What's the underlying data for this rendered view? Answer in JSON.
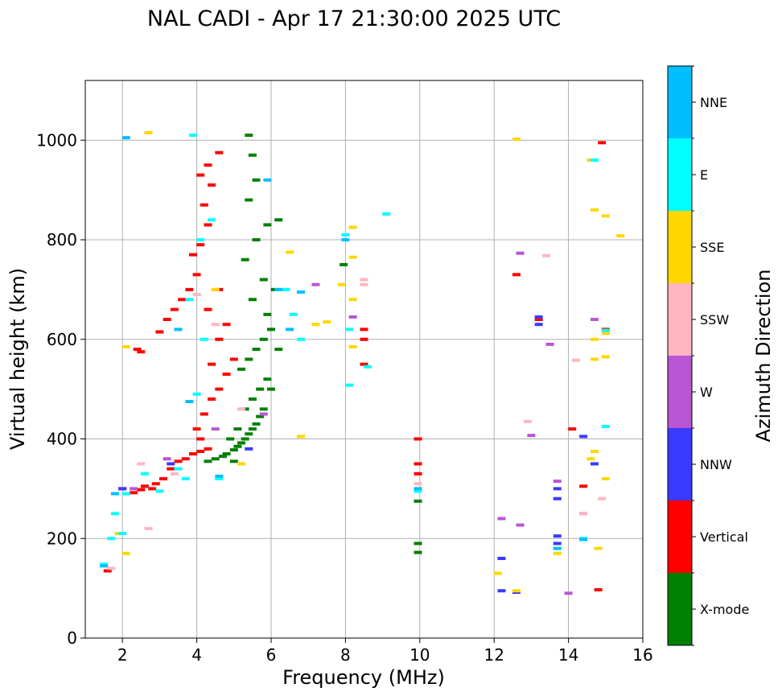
{
  "chart_data": {
    "type": "scatter",
    "title": "NAL CADI - Apr 17 21:30:00 2025 UTC",
    "xlabel": "Frequency (MHz)",
    "ylabel": "Virtual height (km)",
    "xlim": [
      1,
      16
    ],
    "ylim": [
      0,
      1120
    ],
    "xticks": [
      2,
      4,
      6,
      8,
      10,
      12,
      14,
      16
    ],
    "yticks": [
      0,
      200,
      400,
      600,
      800,
      1000
    ],
    "grid": true,
    "colorbar": {
      "label": "Azimuth Direction",
      "categories": [
        {
          "name": "X-mode",
          "color": "#008000"
        },
        {
          "name": "Vertical",
          "color": "#ff0000"
        },
        {
          "name": "NNW",
          "color": "#3a3aff"
        },
        {
          "name": "W",
          "color": "#ba55d3"
        },
        {
          "name": "SSW",
          "color": "#ffb6c1"
        },
        {
          "name": "SSE",
          "color": "#ffd700"
        },
        {
          "name": "E",
          "color": "#00ffff"
        },
        {
          "name": "NNE",
          "color": "#00bfff"
        }
      ]
    },
    "series": [
      {
        "name": "X-mode",
        "points": [
          [
            4.3,
            355
          ],
          [
            4.5,
            360
          ],
          [
            4.7,
            365
          ],
          [
            4.8,
            370
          ],
          [
            5.0,
            378
          ],
          [
            5.1,
            385
          ],
          [
            5.2,
            392
          ],
          [
            5.3,
            400
          ],
          [
            5.4,
            410
          ],
          [
            5.5,
            420
          ],
          [
            5.6,
            430
          ],
          [
            5.7,
            445
          ],
          [
            5.3,
            460
          ],
          [
            5.5,
            480
          ],
          [
            5.7,
            500
          ],
          [
            5.9,
            520
          ],
          [
            5.2,
            540
          ],
          [
            5.4,
            560
          ],
          [
            5.6,
            580
          ],
          [
            5.8,
            600
          ],
          [
            6.0,
            620
          ],
          [
            6.2,
            580
          ],
          [
            5.9,
            650
          ],
          [
            5.5,
            680
          ],
          [
            5.8,
            720
          ],
          [
            6.1,
            700
          ],
          [
            5.3,
            760
          ],
          [
            5.6,
            800
          ],
          [
            5.9,
            830
          ],
          [
            5.4,
            880
          ],
          [
            5.6,
            920
          ],
          [
            5.5,
            970
          ],
          [
            5.4,
            1010
          ],
          [
            6.2,
            840
          ],
          [
            4.9,
            400
          ],
          [
            5.1,
            420
          ],
          [
            5.8,
            460
          ],
          [
            6.0,
            500
          ],
          [
            5.0,
            355
          ],
          [
            9.95,
            275
          ],
          [
            9.95,
            190
          ],
          [
            9.95,
            172
          ],
          [
            7.95,
            750
          ]
        ]
      },
      {
        "name": "Vertical",
        "points": [
          [
            1.6,
            135
          ],
          [
            2.0,
            300
          ],
          [
            2.3,
            292
          ],
          [
            2.5,
            298
          ],
          [
            2.6,
            305
          ],
          [
            2.8,
            300
          ],
          [
            2.9,
            310
          ],
          [
            3.1,
            320
          ],
          [
            3.3,
            340
          ],
          [
            3.5,
            355
          ],
          [
            3.7,
            360
          ],
          [
            3.9,
            370
          ],
          [
            4.1,
            375
          ],
          [
            4.3,
            380
          ],
          [
            4.1,
            400
          ],
          [
            4.0,
            420
          ],
          [
            4.2,
            450
          ],
          [
            4.4,
            480
          ],
          [
            4.6,
            500
          ],
          [
            4.8,
            530
          ],
          [
            5.0,
            560
          ],
          [
            4.4,
            550
          ],
          [
            4.6,
            600
          ],
          [
            4.8,
            630
          ],
          [
            4.3,
            660
          ],
          [
            4.6,
            700
          ],
          [
            2.4,
            580
          ],
          [
            2.5,
            575
          ],
          [
            3.0,
            615
          ],
          [
            3.2,
            640
          ],
          [
            3.4,
            660
          ],
          [
            3.6,
            680
          ],
          [
            3.8,
            700
          ],
          [
            4.0,
            730
          ],
          [
            3.9,
            770
          ],
          [
            4.1,
            790
          ],
          [
            4.3,
            830
          ],
          [
            4.2,
            870
          ],
          [
            4.4,
            910
          ],
          [
            4.1,
            930
          ],
          [
            4.3,
            950
          ],
          [
            4.6,
            975
          ],
          [
            8.5,
            620
          ],
          [
            8.5,
            600
          ],
          [
            8.5,
            550
          ],
          [
            9.95,
            400
          ],
          [
            9.95,
            350
          ],
          [
            9.95,
            330
          ],
          [
            12.6,
            730
          ],
          [
            13.2,
            640
          ],
          [
            14.1,
            420
          ],
          [
            14.4,
            305
          ],
          [
            14.8,
            97
          ],
          [
            14.9,
            995
          ],
          [
            15.0,
            620
          ]
        ]
      },
      {
        "name": "NNW",
        "points": [
          [
            2.0,
            300
          ],
          [
            3.3,
            350
          ],
          [
            5.4,
            380
          ],
          [
            13.2,
            645
          ],
          [
            13.2,
            630
          ],
          [
            13.7,
            300
          ],
          [
            13.7,
            280
          ],
          [
            13.7,
            205
          ],
          [
            13.7,
            190
          ],
          [
            12.2,
            95
          ],
          [
            12.6,
            92
          ],
          [
            12.2,
            160
          ],
          [
            14.7,
            350
          ],
          [
            14.4,
            405
          ]
        ]
      },
      {
        "name": "W",
        "points": [
          [
            2.3,
            300
          ],
          [
            3.2,
            360
          ],
          [
            4.5,
            420
          ],
          [
            5.8,
            450
          ],
          [
            7.2,
            710
          ],
          [
            8.2,
            645
          ],
          [
            12.7,
            773
          ],
          [
            13.0,
            407
          ],
          [
            13.5,
            590
          ],
          [
            13.7,
            315
          ],
          [
            12.7,
            227
          ],
          [
            14.0,
            90
          ],
          [
            14.4,
            250
          ],
          [
            14.7,
            640
          ],
          [
            12.2,
            240
          ]
        ]
      },
      {
        "name": "SSW",
        "points": [
          [
            1.7,
            140
          ],
          [
            2.5,
            350
          ],
          [
            2.7,
            220
          ],
          [
            3.4,
            330
          ],
          [
            4.0,
            690
          ],
          [
            4.5,
            630
          ],
          [
            5.2,
            460
          ],
          [
            8.5,
            720
          ],
          [
            8.5,
            710
          ],
          [
            12.9,
            435
          ],
          [
            13.4,
            768
          ],
          [
            14.2,
            558
          ],
          [
            14.4,
            250
          ],
          [
            14.9,
            280
          ],
          [
            9.95,
            310
          ]
        ]
      },
      {
        "name": "SSE",
        "points": [
          [
            1.9,
            210
          ],
          [
            2.1,
            170
          ],
          [
            2.1,
            585
          ],
          [
            2.7,
            1015
          ],
          [
            4.5,
            700
          ],
          [
            5.2,
            350
          ],
          [
            6.5,
            775
          ],
          [
            6.8,
            405
          ],
          [
            7.2,
            630
          ],
          [
            7.5,
            635
          ],
          [
            7.9,
            710
          ],
          [
            8.2,
            825
          ],
          [
            8.2,
            765
          ],
          [
            8.2,
            680
          ],
          [
            8.2,
            585
          ],
          [
            12.6,
            1002
          ],
          [
            12.6,
            95
          ],
          [
            12.1,
            130
          ],
          [
            13.7,
            170
          ],
          [
            14.6,
            960
          ],
          [
            14.7,
            860
          ],
          [
            15.0,
            848
          ],
          [
            15.4,
            808
          ],
          [
            15.0,
            612
          ],
          [
            15.0,
            565
          ],
          [
            14.7,
            600
          ],
          [
            14.7,
            560
          ],
          [
            14.7,
            375
          ],
          [
            14.6,
            360
          ],
          [
            15.0,
            320
          ],
          [
            14.8,
            180
          ]
        ]
      },
      {
        "name": "E",
        "points": [
          [
            1.5,
            148
          ],
          [
            1.7,
            200
          ],
          [
            1.8,
            250
          ],
          [
            2.0,
            210
          ],
          [
            2.1,
            290
          ],
          [
            2.6,
            330
          ],
          [
            3.0,
            295
          ],
          [
            3.5,
            340
          ],
          [
            3.7,
            320
          ],
          [
            4.0,
            490
          ],
          [
            4.2,
            600
          ],
          [
            4.6,
            320
          ],
          [
            3.8,
            680
          ],
          [
            4.1,
            800
          ],
          [
            4.4,
            840
          ],
          [
            6.4,
            700
          ],
          [
            6.6,
            650
          ],
          [
            6.8,
            600
          ],
          [
            8.0,
            810
          ],
          [
            8.1,
            620
          ],
          [
            8.1,
            508
          ],
          [
            8.6,
            545
          ],
          [
            9.1,
            852
          ],
          [
            9.95,
            295
          ],
          [
            14.4,
            200
          ],
          [
            14.7,
            960
          ],
          [
            15.0,
            618
          ],
          [
            15.0,
            425
          ],
          [
            3.9,
            1010
          ]
        ]
      },
      {
        "name": "NNE",
        "points": [
          [
            1.5,
            145
          ],
          [
            1.8,
            290
          ],
          [
            2.1,
            1005
          ],
          [
            3.5,
            620
          ],
          [
            4.6,
            325
          ],
          [
            5.9,
            920
          ],
          [
            6.2,
            700
          ],
          [
            6.5,
            620
          ],
          [
            6.8,
            695
          ],
          [
            3.8,
            475
          ],
          [
            8.0,
            800
          ],
          [
            9.95,
            300
          ],
          [
            13.7,
            180
          ],
          [
            14.4,
            198
          ]
        ]
      }
    ]
  }
}
